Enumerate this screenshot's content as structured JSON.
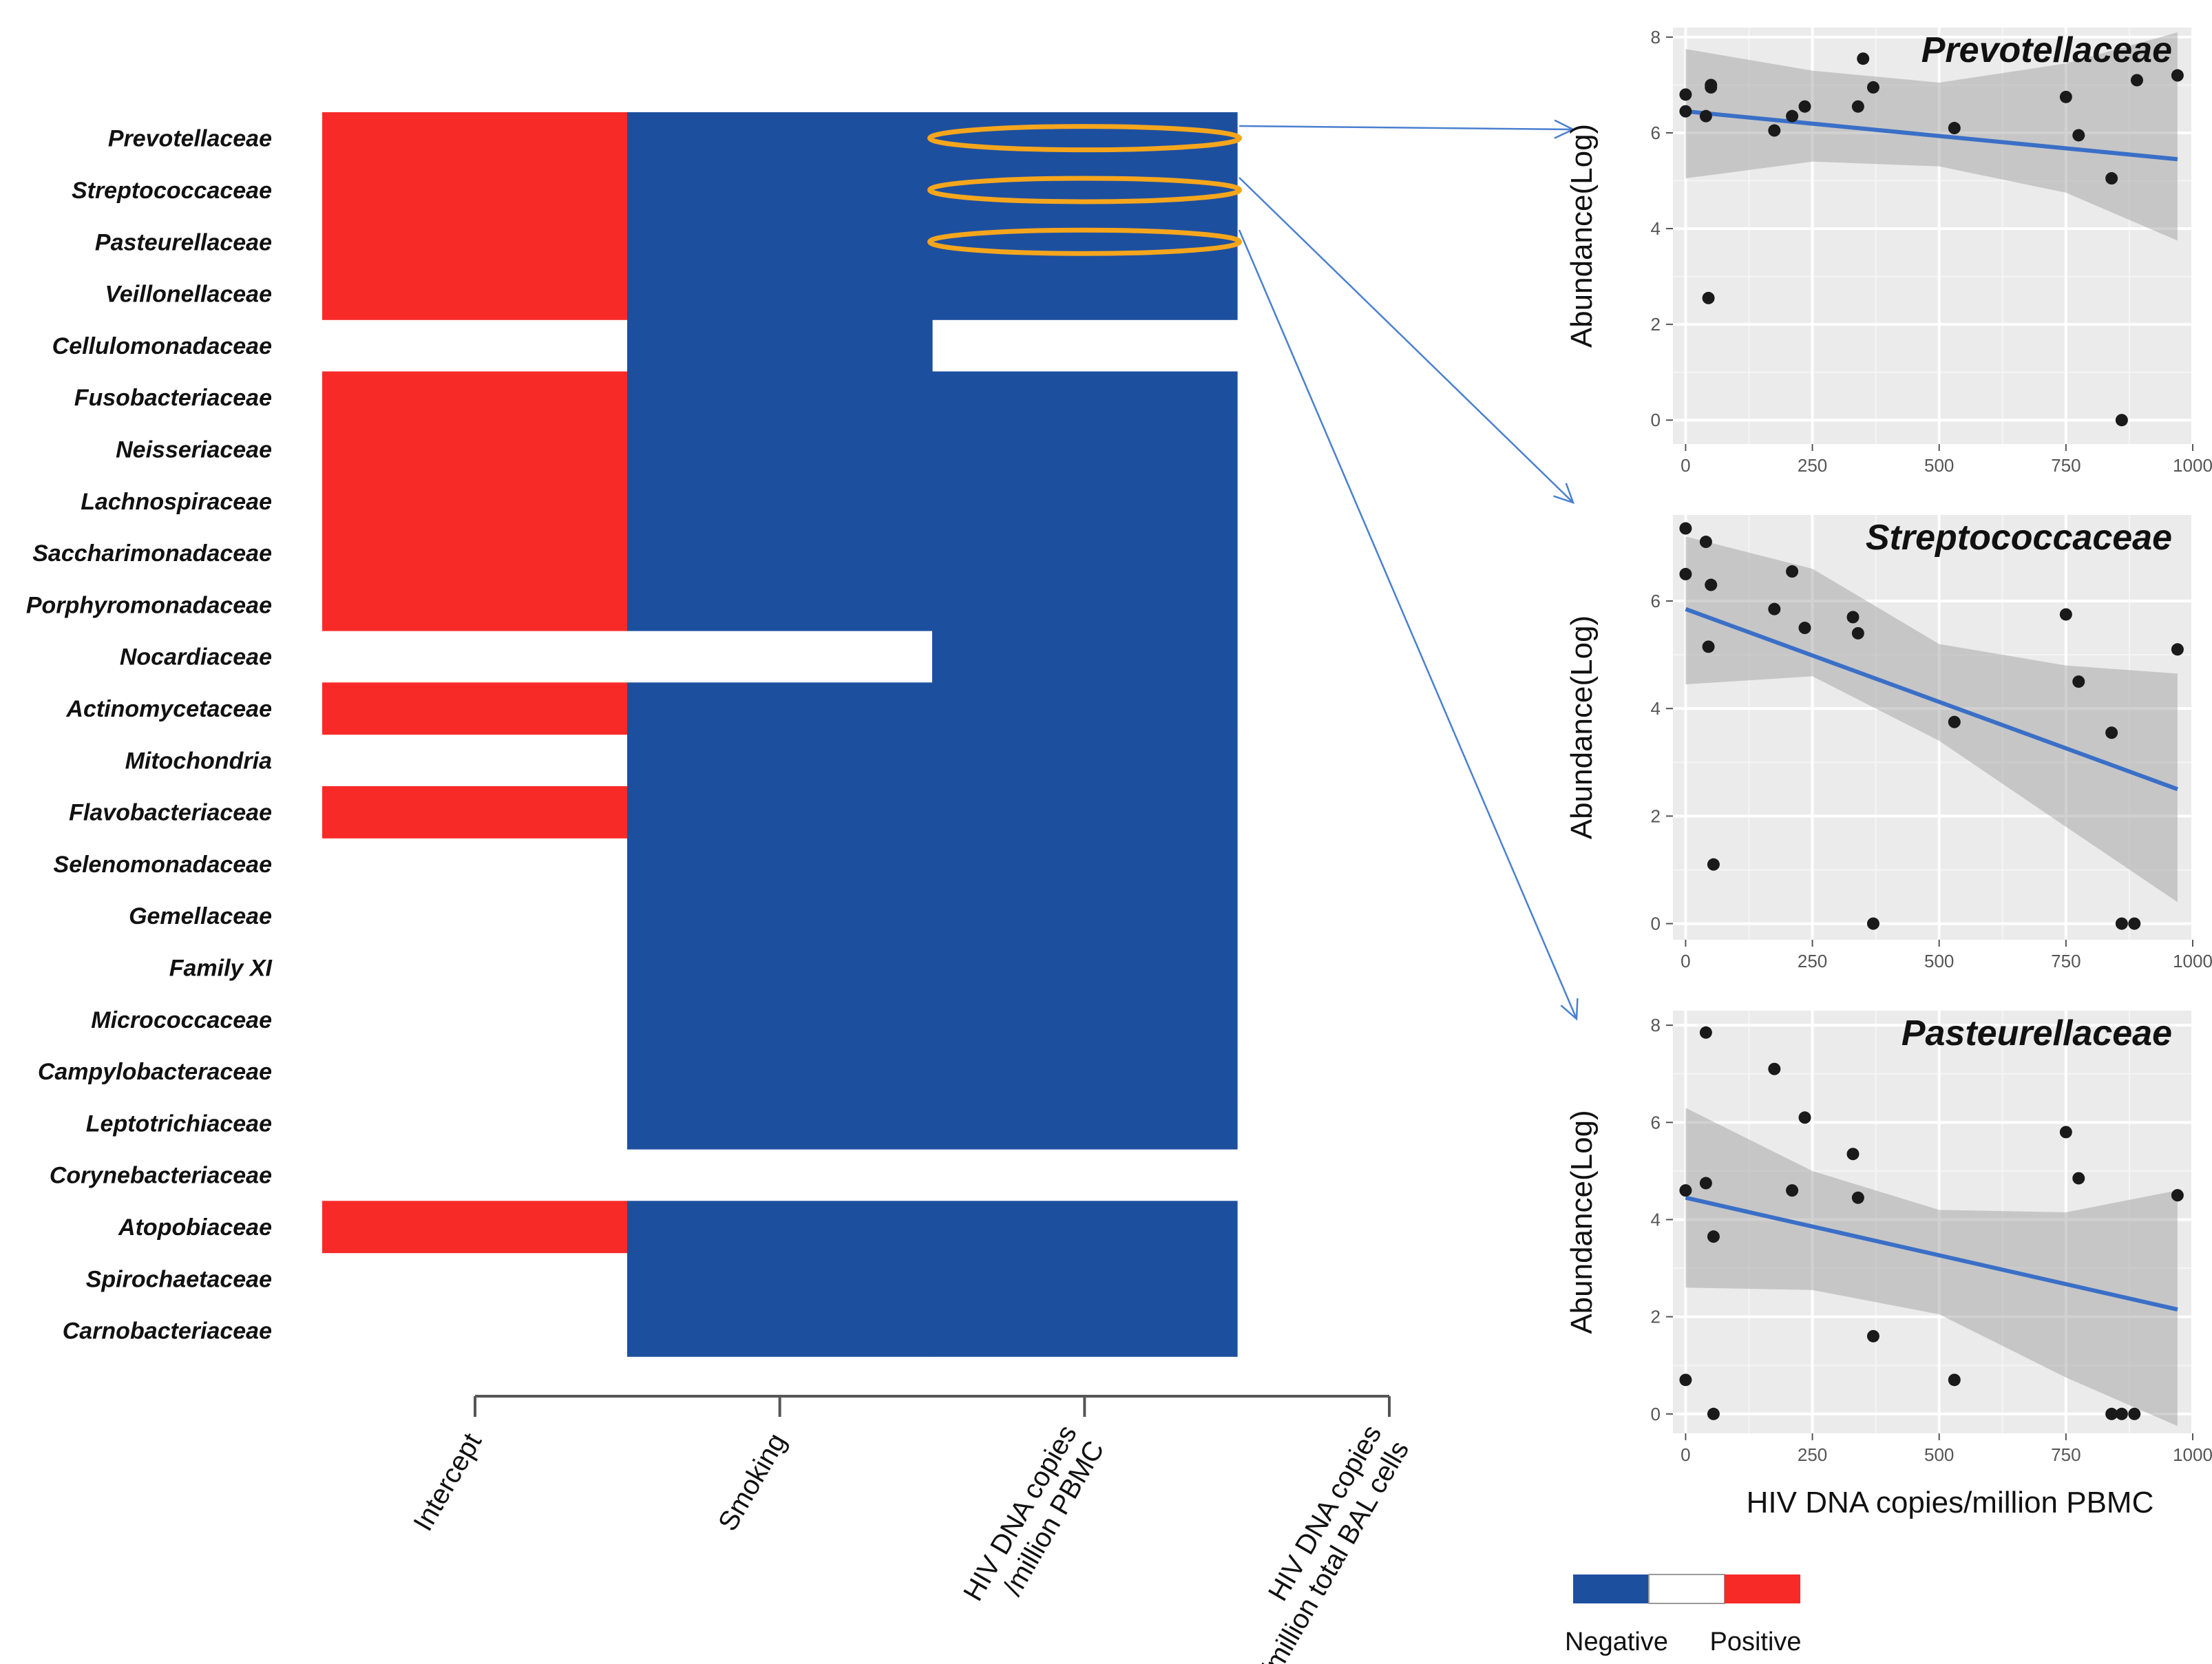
{
  "chart_data": [
    {
      "type": "heatmap",
      "families": [
        "Prevotellaceae",
        "Streptococcaceae",
        "Pasteurellaceae",
        "Veillonellaceae",
        "Cellulomonadaceae",
        "Fusobacteriaceae",
        "Neisseriaceae",
        "Lachnospiraceae",
        "Saccharimonadaceae",
        "Porphyromonadaceae",
        "Nocardiaceae",
        "Actinomycetaceae",
        "Mitochondria",
        "Flavobacteriaceae",
        "Selenomonadaceae",
        "Gemellaceae",
        "Family XI",
        "Micrococcaceae",
        "Campylobacteraceae",
        "Leptotrichiaceae",
        "Corynebacteriaceae",
        "Atopobiaceae",
        "Spirochaetaceae",
        "Carnobacteriaceae"
      ],
      "columns": [
        "Intercept",
        "Smoking",
        "HIV DNA copies\n/million PBMC",
        "HIV DNA copies\n/million total BAL cells"
      ],
      "values": [
        [
          1,
          -1,
          -1,
          0
        ],
        [
          1,
          -1,
          -1,
          0
        ],
        [
          1,
          -1,
          -1,
          0
        ],
        [
          1,
          -1,
          -1,
          0
        ],
        [
          0,
          -1,
          0,
          0
        ],
        [
          1,
          -1,
          -1,
          0
        ],
        [
          1,
          -1,
          -1,
          0
        ],
        [
          1,
          -1,
          -1,
          0
        ],
        [
          1,
          -1,
          -1,
          0
        ],
        [
          1,
          -1,
          -1,
          0
        ],
        [
          0,
          0,
          -1,
          0
        ],
        [
          1,
          -1,
          -1,
          0
        ],
        [
          0,
          -1,
          -1,
          0
        ],
        [
          1,
          -1,
          -1,
          0
        ],
        [
          0,
          -1,
          -1,
          0
        ],
        [
          0,
          -1,
          -1,
          0
        ],
        [
          0,
          -1,
          -1,
          0
        ],
        [
          0,
          -1,
          -1,
          0
        ],
        [
          0,
          -1,
          -1,
          0
        ],
        [
          0,
          -1,
          -1,
          0
        ],
        [
          0,
          0,
          0,
          0
        ],
        [
          1,
          -1,
          -1,
          0
        ],
        [
          0,
          -1,
          -1,
          0
        ],
        [
          0,
          -1,
          -1,
          0
        ]
      ],
      "highlighted": [
        "Prevotellaceae",
        "Streptococcaceae",
        "Pasteurellaceae"
      ],
      "legend": {
        "negative_label": "Negative",
        "positive_label": "Positive",
        "negative_color": "#1d4f9f",
        "zero_color": "#ffffff",
        "positive_color": "#f72a28"
      }
    },
    {
      "type": "scatter",
      "title": "Prevotellaceae",
      "ylabel": "Abundance(Log)",
      "xlim": [
        -25,
        1000
      ],
      "ylim": [
        -0.5,
        8.2
      ],
      "xticks": [
        0,
        250,
        500,
        750,
        1000
      ],
      "yticks": [
        0,
        2,
        4,
        6,
        8
      ],
      "xtick_labels": [
        "0",
        "250",
        "500",
        "750",
        "1000"
      ],
      "points": [
        [
          0,
          6.8
        ],
        [
          0,
          6.45
        ],
        [
          40,
          6.35
        ],
        [
          50,
          6.95
        ],
        [
          50,
          7.0
        ],
        [
          45,
          2.55
        ],
        [
          175,
          6.05
        ],
        [
          210,
          6.35
        ],
        [
          235,
          6.55
        ],
        [
          340,
          6.55
        ],
        [
          350,
          7.55
        ],
        [
          370,
          6.95
        ],
        [
          530,
          6.1
        ],
        [
          750,
          6.75
        ],
        [
          775,
          5.95
        ],
        [
          840,
          5.05
        ],
        [
          860,
          0.0
        ],
        [
          890,
          7.1
        ],
        [
          970,
          7.2
        ]
      ],
      "fit": {
        "x": [
          0,
          970
        ],
        "y": [
          6.45,
          5.45
        ]
      },
      "band": {
        "x": [
          0,
          250,
          500,
          750,
          970
        ],
        "upper": [
          7.75,
          7.3,
          7.05,
          7.45,
          8.1
        ],
        "lower": [
          5.05,
          5.4,
          5.3,
          4.75,
          3.75
        ]
      }
    },
    {
      "type": "scatter",
      "title": "Streptococcaceae",
      "ylabel": "Abundance(Log)",
      "xlim": [
        -25,
        1000
      ],
      "ylim": [
        -0.3,
        7.6
      ],
      "xticks": [
        0,
        250,
        500,
        750,
        1000
      ],
      "yticks": [
        0,
        2,
        4,
        6
      ],
      "xtick_labels": [
        "0",
        "250",
        "500",
        "750",
        "1000"
      ],
      "points": [
        [
          0,
          7.35
        ],
        [
          0,
          6.5
        ],
        [
          40,
          7.1
        ],
        [
          50,
          6.3
        ],
        [
          45,
          5.15
        ],
        [
          55,
          1.1
        ],
        [
          175,
          5.85
        ],
        [
          210,
          6.55
        ],
        [
          235,
          5.5
        ],
        [
          330,
          5.7
        ],
        [
          340,
          5.4
        ],
        [
          370,
          0.0
        ],
        [
          530,
          3.75
        ],
        [
          750,
          5.75
        ],
        [
          775,
          4.5
        ],
        [
          840,
          3.55
        ],
        [
          860,
          0.0
        ],
        [
          885,
          0.0
        ],
        [
          970,
          5.1
        ]
      ],
      "fit": {
        "x": [
          0,
          970
        ],
        "y": [
          5.85,
          2.5
        ]
      },
      "band": {
        "x": [
          0,
          250,
          500,
          750,
          970
        ],
        "upper": [
          7.2,
          6.6,
          5.2,
          4.8,
          4.65
        ],
        "lower": [
          4.45,
          4.6,
          3.4,
          1.8,
          0.4
        ]
      }
    },
    {
      "type": "scatter",
      "title": "Pasteurellaceae",
      "ylabel": "Abundance(Log)",
      "xlabel": "HIV DNA copies/million PBMC",
      "xlim": [
        -25,
        1000
      ],
      "ylim": [
        -0.4,
        8.3
      ],
      "xticks": [
        0,
        250,
        500,
        750,
        1000
      ],
      "yticks": [
        0,
        2,
        4,
        6,
        8
      ],
      "xtick_labels": [
        "0",
        "250",
        "500",
        "750",
        "1000"
      ],
      "points": [
        [
          0,
          0.7
        ],
        [
          0,
          4.6
        ],
        [
          40,
          7.85
        ],
        [
          40,
          4.75
        ],
        [
          55,
          3.65
        ],
        [
          55,
          0.0
        ],
        [
          175,
          7.1
        ],
        [
          210,
          4.6
        ],
        [
          235,
          6.1
        ],
        [
          330,
          5.35
        ],
        [
          340,
          4.45
        ],
        [
          370,
          1.6
        ],
        [
          530,
          0.7
        ],
        [
          750,
          5.8
        ],
        [
          775,
          4.85
        ],
        [
          840,
          0.0
        ],
        [
          860,
          0.0
        ],
        [
          885,
          0.0
        ],
        [
          970,
          4.5
        ]
      ],
      "fit": {
        "x": [
          0,
          970
        ],
        "y": [
          4.45,
          2.15
        ]
      },
      "band": {
        "x": [
          0,
          250,
          500,
          750,
          970
        ],
        "upper": [
          6.3,
          5.0,
          4.2,
          4.15,
          4.6
        ],
        "lower": [
          2.6,
          2.55,
          2.05,
          0.75,
          -0.25
        ]
      }
    }
  ]
}
